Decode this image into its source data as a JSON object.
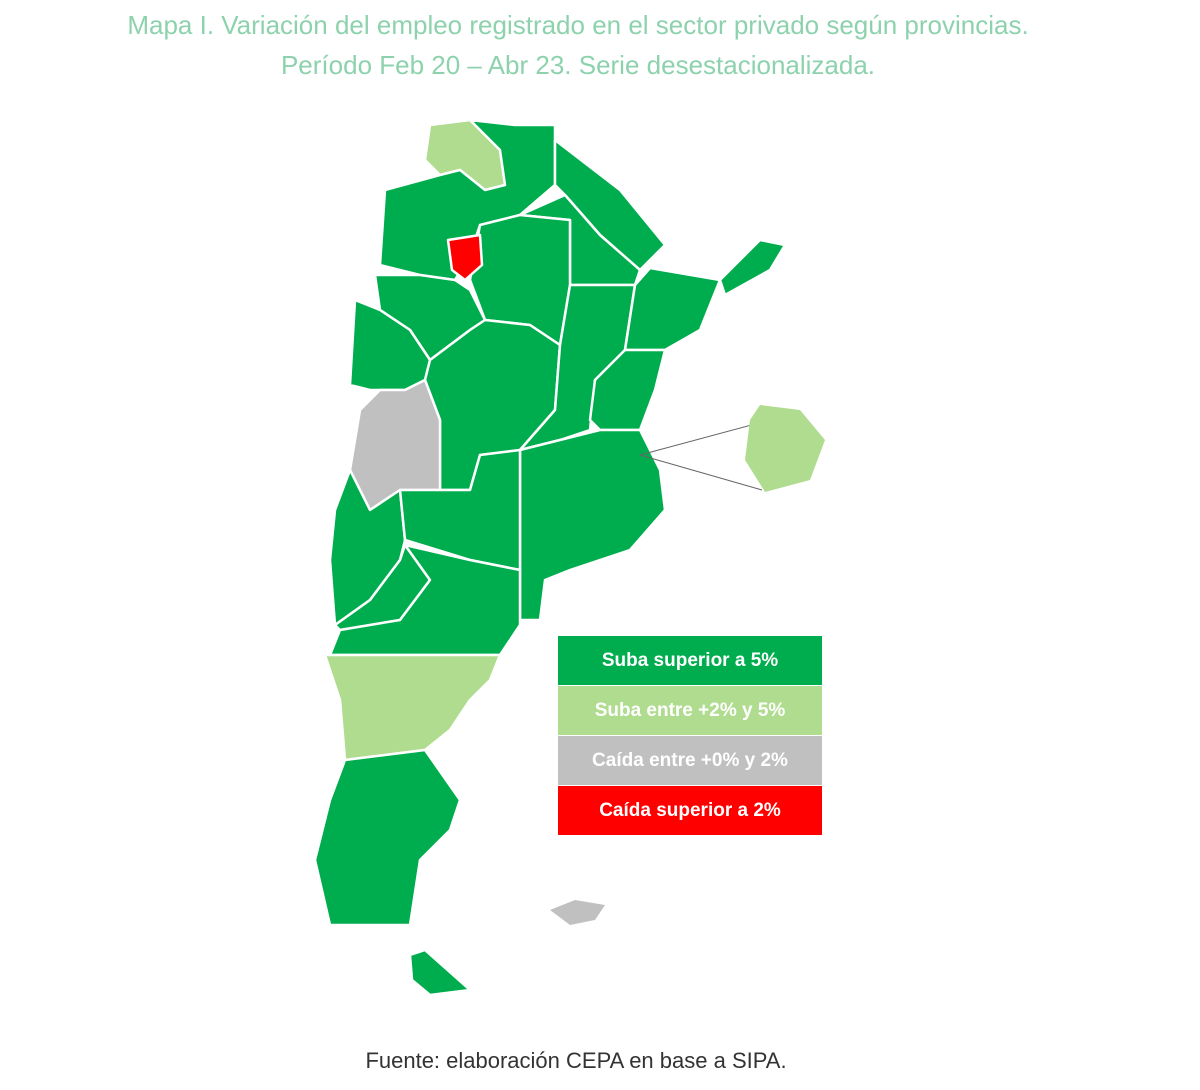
{
  "title": [
    "Mapa I. Variación del empleo registrado en el sector privado según provincias.",
    "Período Feb 20 – Abr 23. Serie desestacionalizada."
  ],
  "legend": [
    {
      "label": "Suba superior a 5%",
      "color": "#00ad4e"
    },
    {
      "label": "Suba entre +2% y 5%",
      "color": "#b0dc90"
    },
    {
      "label": "Caída entre +0% y 2%",
      "color": "#c0c0c0"
    },
    {
      "label": "Caída superior a 2%",
      "color": "#ff0000"
    }
  ],
  "source": "Fuente: elaboración CEPA en base a SIPA."
}
